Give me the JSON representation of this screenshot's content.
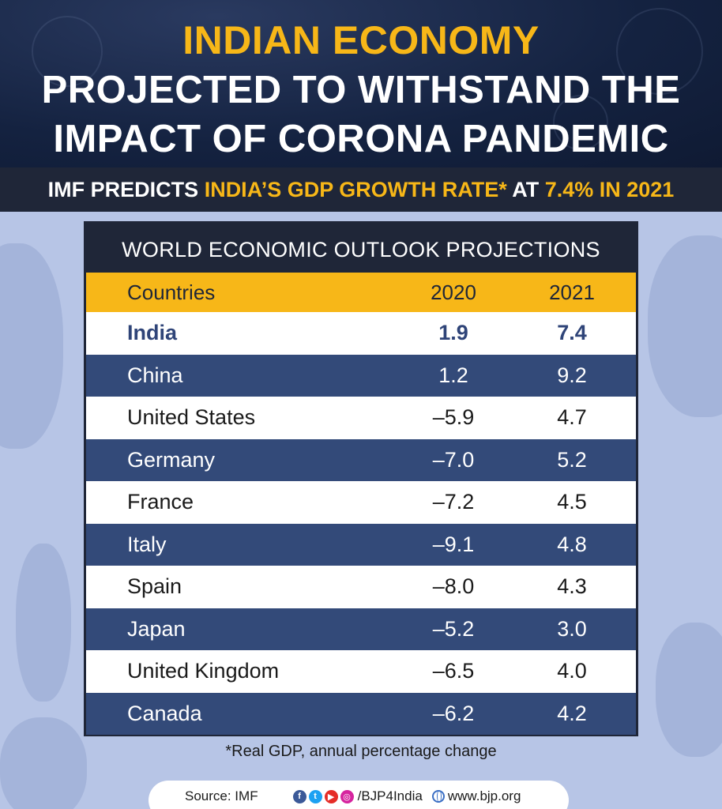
{
  "header": {
    "title_line1": "INDIAN ECONOMY",
    "title_line2": "PROJECTED TO WITHSTAND THE",
    "title_line3": "IMPACT OF CORONA PANDEMIC"
  },
  "subheading": {
    "part1": "IMF PREDICTS ",
    "part2": "INDIA’S GDP GROWTH RATE*",
    "part3": " AT ",
    "part4": "7.4% IN 2021"
  },
  "colors": {
    "accent": "#f7b718",
    "navy": "#1f2638",
    "row_dark": "#334a79",
    "highlight_text": "#2f4478"
  },
  "chart_data": {
    "type": "table",
    "title": "WORLD ECONOMIC OUTLOOK PROJECTIONS",
    "columns": [
      "Countries",
      "2020",
      "2021"
    ],
    "rows": [
      {
        "country": "India",
        "y2020": "1.9",
        "y2021": "7.4",
        "highlight": true
      },
      {
        "country": "China",
        "y2020": "1.2",
        "y2021": "9.2"
      },
      {
        "country": "United States",
        "y2020": "–5.9",
        "y2021": "4.7"
      },
      {
        "country": "Germany",
        "y2020": "–7.0",
        "y2021": "5.2"
      },
      {
        "country": "France",
        "y2020": "–7.2",
        "y2021": "4.5"
      },
      {
        "country": "Italy",
        "y2020": "–9.1",
        "y2021": "4.8"
      },
      {
        "country": "Spain",
        "y2020": "–8.0",
        "y2021": "4.3"
      },
      {
        "country": "Japan",
        "y2020": "–5.2",
        "y2021": "3.0"
      },
      {
        "country": "United Kingdom",
        "y2020": "–6.5",
        "y2021": "4.0"
      },
      {
        "country": "Canada",
        "y2020": "–6.2",
        "y2021": "4.2"
      }
    ]
  },
  "footnote": "*Real GDP, annual percentage change",
  "footer": {
    "source": "Source: IMF",
    "social_icons": [
      "facebook-icon",
      "twitter-icon",
      "youtube-icon",
      "instagram-icon"
    ],
    "handle": "/BJP4India",
    "website": "www.bjp.org"
  }
}
